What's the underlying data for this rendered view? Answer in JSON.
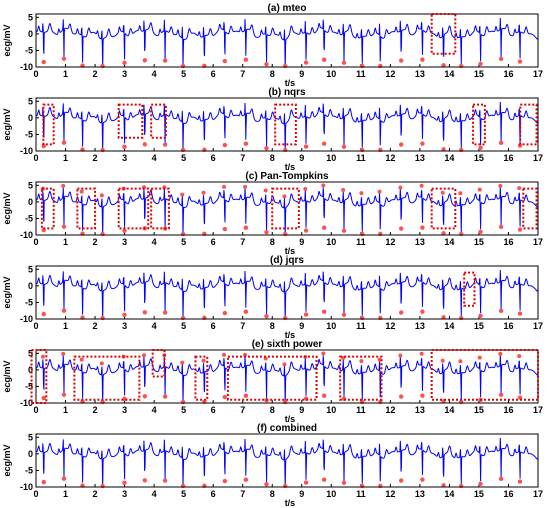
{
  "chart_data": [
    {
      "type": "line",
      "title": "(a) mteo",
      "xlabel": "t/s",
      "ylabel": "ecg/mV",
      "xlim": [
        0,
        17
      ],
      "ylim": [
        -10,
        6
      ],
      "xticks": [
        0,
        1,
        2,
        3,
        4,
        5,
        6,
        7,
        8,
        9,
        10,
        11,
        12,
        13,
        14,
        15,
        16,
        17
      ],
      "yticks": [
        5,
        0,
        -5,
        -10
      ],
      "series_color": "#0000ff",
      "marker_color": "#ff5050",
      "box_color": "#dd0000",
      "error_boxes": [
        [
          13.4,
          14.2,
          -6,
          6
        ]
      ]
    },
    {
      "type": "line",
      "title": "(b) nqrs",
      "xlabel": "t/s",
      "ylabel": "ecg/mV",
      "xlim": [
        0,
        17
      ],
      "ylim": [
        -10,
        6
      ],
      "xticks": [
        0,
        1,
        2,
        3,
        4,
        5,
        6,
        7,
        8,
        9,
        10,
        11,
        12,
        13,
        14,
        15,
        16,
        17
      ],
      "yticks": [
        5,
        0,
        -5,
        -10
      ],
      "series_color": "#0000ff",
      "marker_color": "#ff5050",
      "box_color": "#dd0000",
      "error_boxes": [
        [
          0.25,
          0.6,
          -8,
          4
        ],
        [
          2.8,
          3.6,
          -6,
          4
        ],
        [
          3.9,
          4.4,
          -6,
          4
        ],
        [
          8.1,
          8.8,
          -8,
          4
        ],
        [
          14.8,
          15.2,
          -8,
          4
        ],
        [
          16.4,
          16.95,
          -8,
          4
        ]
      ]
    },
    {
      "type": "line",
      "title": "(c) Pan-Tompkins",
      "xlabel": "t/s",
      "ylabel": "ecg/mV",
      "xlim": [
        0,
        17
      ],
      "ylim": [
        -10,
        6
      ],
      "xticks": [
        0,
        1,
        2,
        3,
        4,
        5,
        6,
        7,
        8,
        9,
        10,
        11,
        12,
        13,
        14,
        15,
        16,
        17
      ],
      "yticks": [
        5,
        0,
        -5,
        -10
      ],
      "series_color": "#0000ff",
      "marker_color": "#ff5050",
      "box_color": "#dd0000",
      "error_boxes": [
        [
          0.2,
          0.6,
          -8,
          4
        ],
        [
          1.4,
          2.0,
          -8,
          4
        ],
        [
          2.8,
          3.8,
          -8,
          4
        ],
        [
          3.9,
          4.5,
          -8,
          4
        ],
        [
          8.0,
          8.9,
          -8,
          4
        ],
        [
          13.4,
          14.2,
          -8,
          4
        ],
        [
          16.5,
          16.95,
          -8,
          4
        ]
      ]
    },
    {
      "type": "line",
      "title": "(d) jqrs",
      "xlabel": "t/s",
      "ylabel": "ecg/mV",
      "xlim": [
        0,
        17
      ],
      "ylim": [
        -10,
        6
      ],
      "xticks": [
        0,
        1,
        2,
        3,
        4,
        5,
        6,
        7,
        8,
        9,
        10,
        11,
        12,
        13,
        14,
        15,
        16,
        17
      ],
      "yticks": [
        5,
        0,
        -5,
        -10
      ],
      "series_color": "#0000ff",
      "marker_color": "#ff5050",
      "box_color": "#dd0000",
      "error_boxes": [
        [
          14.5,
          14.85,
          -6,
          4
        ]
      ]
    },
    {
      "type": "line",
      "title": "(e) sixth power",
      "xlabel": "t/s",
      "ylabel": "ecg/mV",
      "xlim": [
        0,
        17
      ],
      "ylim": [
        -10,
        6
      ],
      "xticks": [
        0,
        1,
        2,
        3,
        4,
        5,
        6,
        7,
        8,
        9,
        10,
        11,
        12,
        13,
        14,
        15,
        16,
        17
      ],
      "yticks": [
        5,
        0,
        -5,
        -10
      ],
      "series_color": "#0000ff",
      "marker_color": "#ff5050",
      "box_color": "#dd0000",
      "error_boxes": [
        [
          -0.15,
          0.35,
          -10,
          6
        ],
        [
          1.3,
          3.5,
          -9,
          4
        ],
        [
          3.95,
          4.35,
          -2,
          6
        ],
        [
          5.4,
          5.8,
          -9,
          4
        ],
        [
          6.5,
          9.5,
          -9,
          4
        ],
        [
          10.3,
          11.7,
          -9,
          4
        ],
        [
          13.4,
          17.0,
          -9,
          6
        ]
      ]
    },
    {
      "type": "line",
      "title": "(f) combined",
      "xlabel": "t/s",
      "ylabel": "ecg/mV",
      "xlim": [
        0,
        17
      ],
      "ylim": [
        -10,
        6
      ],
      "xticks": [
        0,
        1,
        2,
        3,
        4,
        5,
        6,
        7,
        8,
        9,
        10,
        11,
        12,
        13,
        14,
        15,
        16,
        17
      ],
      "yticks": [
        5,
        0,
        -5,
        -10
      ],
      "series_color": "#0000ff",
      "marker_color": "#ff5050",
      "box_color": "#dd0000",
      "error_boxes": []
    }
  ]
}
